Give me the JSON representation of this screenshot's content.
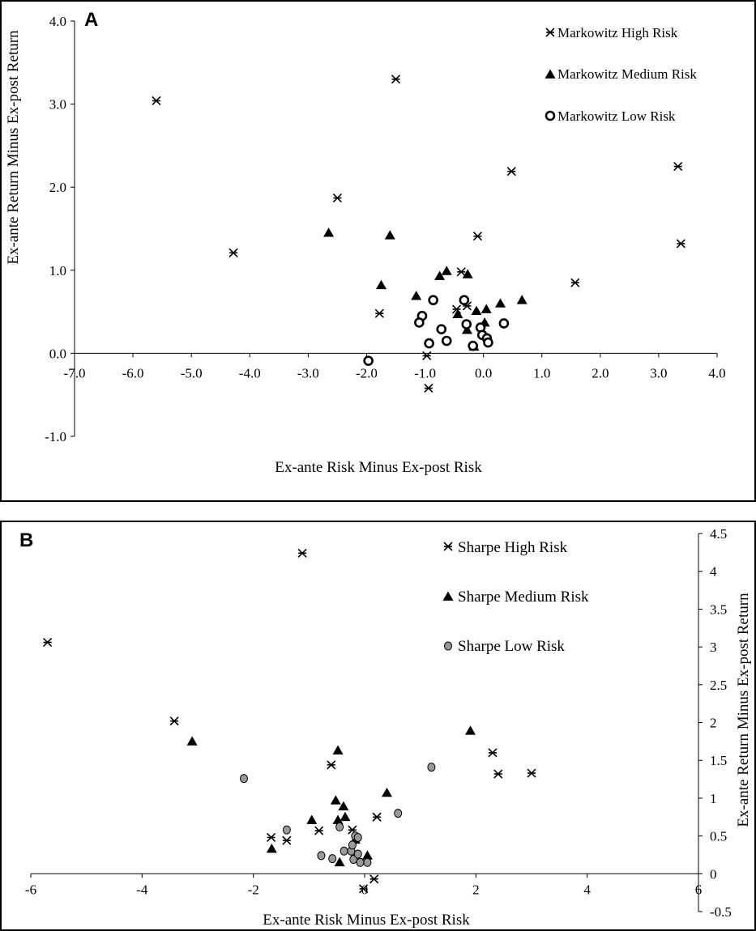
{
  "colors": {
    "axis": "#000000",
    "marker_fill_black": "#000000",
    "marker_fill_white": "#ffffff",
    "marker_fill_gray": "#999999"
  },
  "chart_data": [
    {
      "panel_label": "A",
      "type": "scatter",
      "xlabel": "Ex-ante Risk Minus Ex-post Risk",
      "ylabel": "Ex-ante Return Minus Ex-post Return",
      "xlim": [
        -7.0,
        4.0
      ],
      "ylim": [
        -1.0,
        4.0
      ],
      "x_ticks": [
        "-7.0",
        "-6.0",
        "-5.0",
        "-4.0",
        "-3.0",
        "-2.0",
        "-1.0",
        "0.0",
        "1.0",
        "2.0",
        "3.0",
        "4.0"
      ],
      "y_ticks": [
        "4.0",
        "3.0",
        "2.0",
        "1.0",
        "0.0",
        "-1.0"
      ],
      "legend_position": "top-right",
      "series": [
        {
          "name": "Markowitz High Risk",
          "marker": "star",
          "points": [
            [
              -5.6,
              3.04
            ],
            [
              -4.28,
              1.21
            ],
            [
              -2.5,
              1.87
            ],
            [
              -1.5,
              3.3
            ],
            [
              -1.78,
              0.48
            ],
            [
              -0.97,
              -0.03
            ],
            [
              -0.94,
              -0.42
            ],
            [
              -0.46,
              0.53
            ],
            [
              -0.38,
              0.98
            ],
            [
              -0.28,
              0.57
            ],
            [
              -0.1,
              1.41
            ],
            [
              0.48,
              2.19
            ],
            [
              1.57,
              0.85
            ],
            [
              3.33,
              2.25
            ],
            [
              3.38,
              1.32
            ]
          ]
        },
        {
          "name": "Markowitz Medium Risk",
          "marker": "triangle",
          "points": [
            [
              -2.65,
              1.45
            ],
            [
              -1.6,
              1.42
            ],
            [
              -1.75,
              0.82
            ],
            [
              -1.15,
              0.69
            ],
            [
              -0.75,
              0.93
            ],
            [
              -0.63,
              0.99
            ],
            [
              -0.27,
              0.95
            ],
            [
              -0.44,
              0.47
            ],
            [
              -0.28,
              0.28
            ],
            [
              -0.12,
              0.51
            ],
            [
              0.05,
              0.53
            ],
            [
              0.02,
              0.37
            ],
            [
              0.29,
              0.6
            ],
            [
              0.66,
              0.64
            ],
            [
              -0.16,
              0.08
            ]
          ]
        },
        {
          "name": "Markowitz Low Risk",
          "marker": "circle-open",
          "points": [
            [
              -1.97,
              -0.09
            ],
            [
              -1.05,
              0.45
            ],
            [
              -1.1,
              0.37
            ],
            [
              -0.86,
              0.64
            ],
            [
              -0.93,
              0.12
            ],
            [
              -0.72,
              0.29
            ],
            [
              -0.63,
              0.15
            ],
            [
              -0.33,
              0.64
            ],
            [
              -0.29,
              0.35
            ],
            [
              -0.05,
              0.31
            ],
            [
              -0.02,
              0.22
            ],
            [
              0.06,
              0.18
            ],
            [
              0.08,
              0.13
            ],
            [
              0.35,
              0.36
            ],
            [
              -0.18,
              0.09
            ]
          ]
        }
      ]
    },
    {
      "panel_label": "B",
      "type": "scatter",
      "xlabel": "Ex-ante Risk Minus Ex-post Risk",
      "ylabel": "Ex-ante Return Minus Ex-post Return",
      "xlim": [
        -6,
        6
      ],
      "ylim": [
        -0.5,
        4.5
      ],
      "x_ticks": [
        "-6",
        "-4",
        "-2",
        "0",
        "2",
        "4",
        "6"
      ],
      "y_ticks": [
        "4.5",
        "4",
        "3.5",
        "3",
        "2.5",
        "2",
        "1.5",
        "1",
        "0.5",
        "0",
        "-0.5"
      ],
      "legend_position": "top-right",
      "series": [
        {
          "name": "Sharpe High Risk",
          "marker": "star",
          "points": [
            [
              -5.7,
              3.06
            ],
            [
              -1.12,
              4.24
            ],
            [
              -3.42,
              2.02
            ],
            [
              -0.6,
              1.44
            ],
            [
              -1.68,
              0.48
            ],
            [
              -1.4,
              0.44
            ],
            [
              -0.82,
              0.57
            ],
            [
              -0.22,
              0.58
            ],
            [
              0.22,
              0.75
            ],
            [
              -0.02,
              -0.2
            ],
            [
              0.17,
              -0.07
            ],
            [
              2.3,
              1.6
            ],
            [
              2.4,
              1.32
            ],
            [
              3.0,
              1.33
            ]
          ]
        },
        {
          "name": "Sharpe Medium Risk",
          "marker": "triangle",
          "points": [
            [
              -3.1,
              1.75
            ],
            [
              -1.67,
              0.33
            ],
            [
              -0.95,
              0.71
            ],
            [
              -0.52,
              0.97
            ],
            [
              -0.48,
              1.63
            ],
            [
              -0.48,
              0.71
            ],
            [
              -0.38,
              0.89
            ],
            [
              -0.35,
              0.75
            ],
            [
              -0.17,
              0.45
            ],
            [
              -0.45,
              0.15
            ],
            [
              0.05,
              0.24
            ],
            [
              0.4,
              1.07
            ],
            [
              1.9,
              1.89
            ]
          ]
        },
        {
          "name": "Sharpe Low Risk",
          "marker": "circle-gray",
          "points": [
            [
              -2.17,
              1.26
            ],
            [
              -1.4,
              0.58
            ],
            [
              -0.78,
              0.24
            ],
            [
              -0.58,
              0.2
            ],
            [
              -0.45,
              0.62
            ],
            [
              -0.37,
              0.3
            ],
            [
              -0.24,
              0.3
            ],
            [
              -0.22,
              0.38
            ],
            [
              -0.17,
              0.5
            ],
            [
              -0.12,
              0.48
            ],
            [
              -0.2,
              0.19
            ],
            [
              -0.12,
              0.26
            ],
            [
              -0.08,
              0.15
            ],
            [
              0.05,
              0.15
            ],
            [
              0.6,
              0.8
            ],
            [
              1.2,
              1.41
            ]
          ]
        }
      ]
    }
  ]
}
